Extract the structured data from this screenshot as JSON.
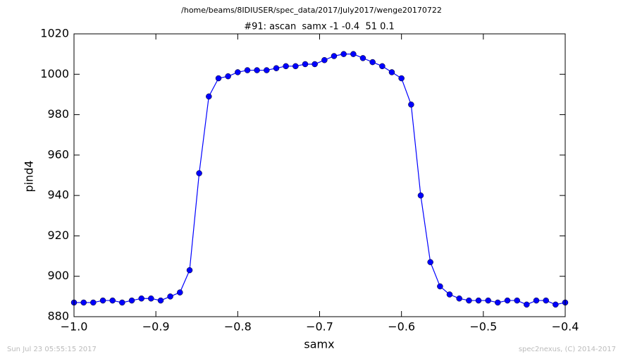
{
  "chart_data": {
    "type": "line",
    "suptitle": "/home/beams/8IDIUSER/spec_data/2017/July2017/wenge20170722",
    "title": "#91: ascan  samx -1 -0.4  51 0.1",
    "x_label": "samx",
    "y_label": "pind4",
    "footer_left": "Sun Jul 23 05:55:15 2017",
    "footer_right": "spec2nexus, (C) 2014-2017",
    "x": [
      -1,
      -0.9882,
      -0.9765,
      -0.9647,
      -0.9529,
      -0.9412,
      -0.9294,
      -0.9176,
      -0.9059,
      -0.8941,
      -0.8824,
      -0.8706,
      -0.8588,
      -0.8471,
      -0.8353,
      -0.8235,
      -0.8118,
      -0.8,
      -0.7882,
      -0.7765,
      -0.7647,
      -0.7529,
      -0.7412,
      -0.7294,
      -0.7176,
      -0.7059,
      -0.6941,
      -0.6824,
      -0.6706,
      -0.6588,
      -0.6471,
      -0.6353,
      -0.6235,
      -0.6118,
      -0.6,
      -0.5882,
      -0.5765,
      -0.5647,
      -0.5529,
      -0.5412,
      -0.5294,
      -0.5176,
      -0.5059,
      -0.4941,
      -0.4824,
      -0.4706,
      -0.4588,
      -0.4471,
      -0.4353,
      -0.4235,
      -0.4118,
      -0.4
    ],
    "series": [
      {
        "color": "#0000ff",
        "values": [
          887,
          887,
          887,
          888,
          888,
          887,
          888,
          889,
          889,
          888,
          890,
          892,
          903,
          951,
          989,
          998,
          999,
          1001,
          1002,
          1002,
          1002,
          1003,
          1004,
          1004,
          1005,
          1005,
          1007,
          1009,
          1010,
          1010,
          1008,
          1006,
          1004,
          1001,
          998,
          985,
          940,
          907,
          895,
          891,
          889,
          888,
          888,
          888,
          887,
          888,
          888,
          886,
          888,
          888,
          886,
          887
        ]
      }
    ],
    "xlim": [
      -1,
      -0.4
    ],
    "xticks": [
      {
        "value": -1,
        "label": "−1.0"
      },
      {
        "value": -0.9,
        "label": "−0.9"
      },
      {
        "value": -0.8,
        "label": "−0.8"
      },
      {
        "value": -0.7,
        "label": "−0.7"
      },
      {
        "value": -0.6,
        "label": "−0.6"
      },
      {
        "value": -0.5,
        "label": "−0.5"
      },
      {
        "value": -0.4,
        "label": "−0.4"
      }
    ],
    "ylim": [
      880,
      1020
    ],
    "yticks": [
      880,
      900,
      920,
      940,
      960,
      980,
      1000,
      1020
    ],
    "grid": false,
    "markers": true
  }
}
